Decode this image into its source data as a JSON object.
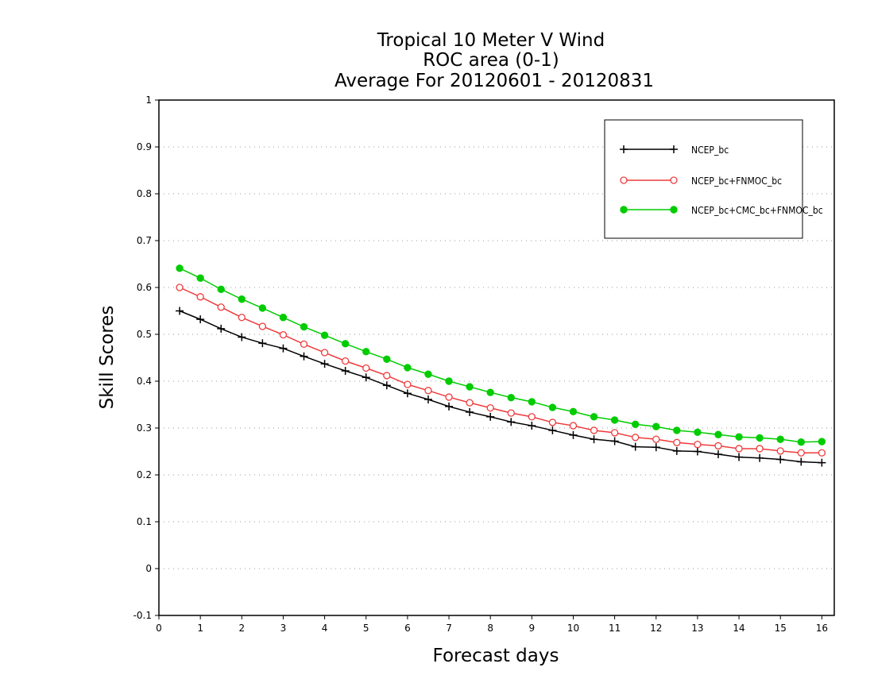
{
  "chart_data": {
    "type": "line",
    "title_lines": [
      "Tropical 10 Meter V Wind",
      "ROC area (0-1)",
      "Average For 20120601 - 20120831"
    ],
    "xlabel": "Forecast days",
    "ylabel": "Skill Scores",
    "xlim": [
      0,
      16.3
    ],
    "ylim": [
      -0.1,
      1
    ],
    "x_ticks": [
      0,
      1,
      2,
      3,
      4,
      5,
      6,
      7,
      8,
      9,
      10,
      11,
      12,
      13,
      14,
      15,
      16
    ],
    "y_ticks": [
      -0.1,
      0,
      0.1,
      0.2,
      0.3,
      0.4,
      0.5,
      0.6,
      0.7,
      0.8,
      0.9,
      1
    ],
    "y_tick_labels": [
      "-0.1",
      "0",
      "0.1",
      "0.2",
      "0.3",
      "0.4",
      "0.5",
      "0.6",
      "0.7",
      "0.8",
      "0.9",
      "1"
    ],
    "grid": "horizontal-dotted",
    "legend_position": "top-right",
    "x": [
      0.5,
      1.0,
      1.5,
      2.0,
      2.5,
      3.0,
      3.5,
      4.0,
      4.5,
      5.0,
      5.5,
      6.0,
      6.5,
      7.0,
      7.5,
      8.0,
      8.5,
      9.0,
      9.5,
      10.0,
      10.5,
      11.0,
      11.5,
      12.0,
      12.5,
      13.0,
      13.5,
      14.0,
      14.5,
      15.0,
      15.5,
      16.0
    ],
    "series": [
      {
        "name": "NCEP_bc",
        "color": "#000000",
        "marker": "plus",
        "values": [
          0.55,
          0.532,
          0.512,
          0.494,
          0.481,
          0.47,
          0.453,
          0.437,
          0.422,
          0.408,
          0.391,
          0.374,
          0.361,
          0.346,
          0.334,
          0.324,
          0.313,
          0.305,
          0.295,
          0.285,
          0.276,
          0.272,
          0.26,
          0.259,
          0.251,
          0.25,
          0.244,
          0.238,
          0.236,
          0.233,
          0.228,
          0.226
        ]
      },
      {
        "name": "NCEP_bc+FNMOC_bc",
        "color": "#ee3b3b",
        "marker": "open-circle",
        "values": [
          0.6,
          0.58,
          0.558,
          0.536,
          0.517,
          0.499,
          0.479,
          0.461,
          0.443,
          0.428,
          0.412,
          0.393,
          0.38,
          0.366,
          0.354,
          0.343,
          0.332,
          0.324,
          0.312,
          0.305,
          0.295,
          0.29,
          0.28,
          0.276,
          0.269,
          0.265,
          0.262,
          0.256,
          0.256,
          0.251,
          0.247,
          0.247
        ]
      },
      {
        "name": "NCEP_bc+CMC_bc+FNMOC_bc",
        "color": "#00cc00",
        "marker": "filled-circle",
        "values": [
          0.641,
          0.62,
          0.596,
          0.575,
          0.556,
          0.536,
          0.516,
          0.498,
          0.48,
          0.463,
          0.447,
          0.429,
          0.415,
          0.4,
          0.388,
          0.376,
          0.365,
          0.356,
          0.344,
          0.335,
          0.324,
          0.317,
          0.308,
          0.303,
          0.295,
          0.291,
          0.286,
          0.281,
          0.279,
          0.276,
          0.27,
          0.271
        ]
      }
    ]
  }
}
